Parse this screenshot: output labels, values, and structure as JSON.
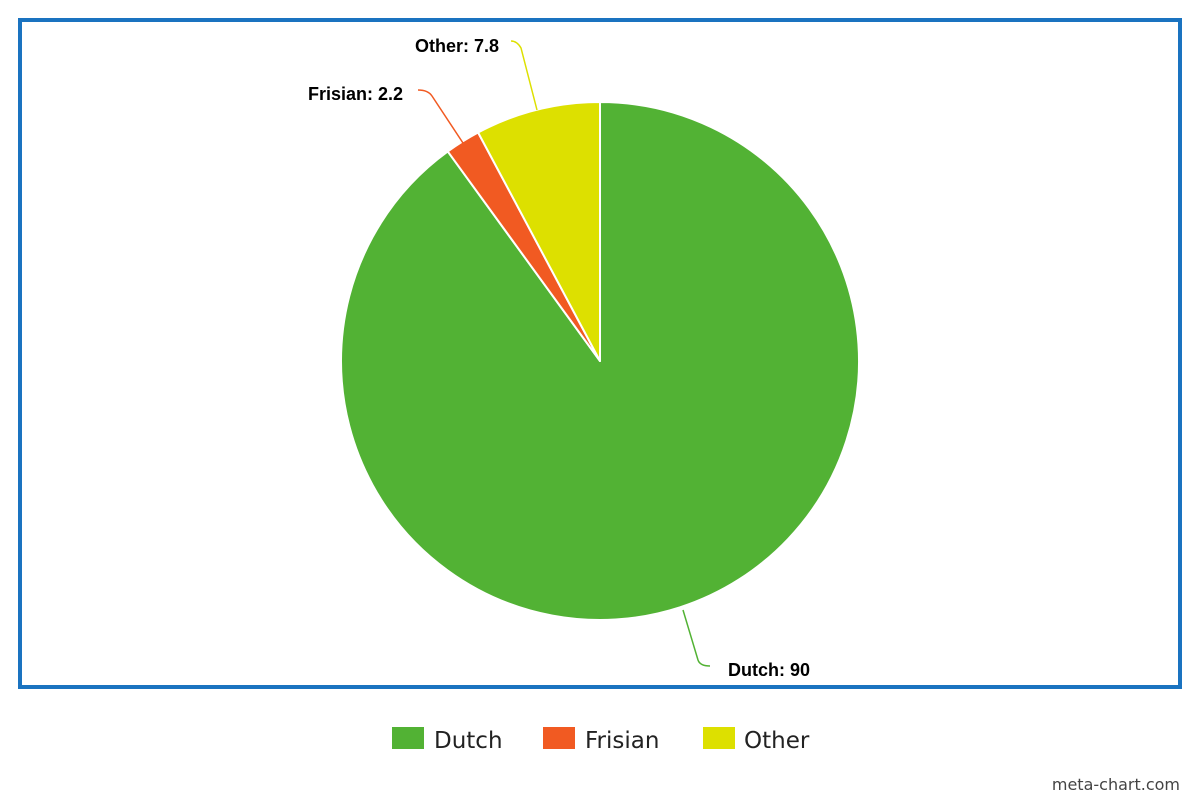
{
  "chart_data": {
    "type": "pie",
    "categories": [
      "Dutch",
      "Frisian",
      "Other"
    ],
    "values": [
      90,
      2.2,
      7.8
    ],
    "colors": [
      "#52b234",
      "#f15a22",
      "#dde000"
    ],
    "data_labels": [
      "Dutch: 90",
      "Frisian: 2.2",
      "Other: 7.8"
    ],
    "title": "",
    "legend": {
      "placement": "bottom",
      "entries": [
        "Dutch",
        "Frisian",
        "Other"
      ]
    },
    "frame_color": "#1a73c0"
  },
  "credit": "meta-chart.com"
}
